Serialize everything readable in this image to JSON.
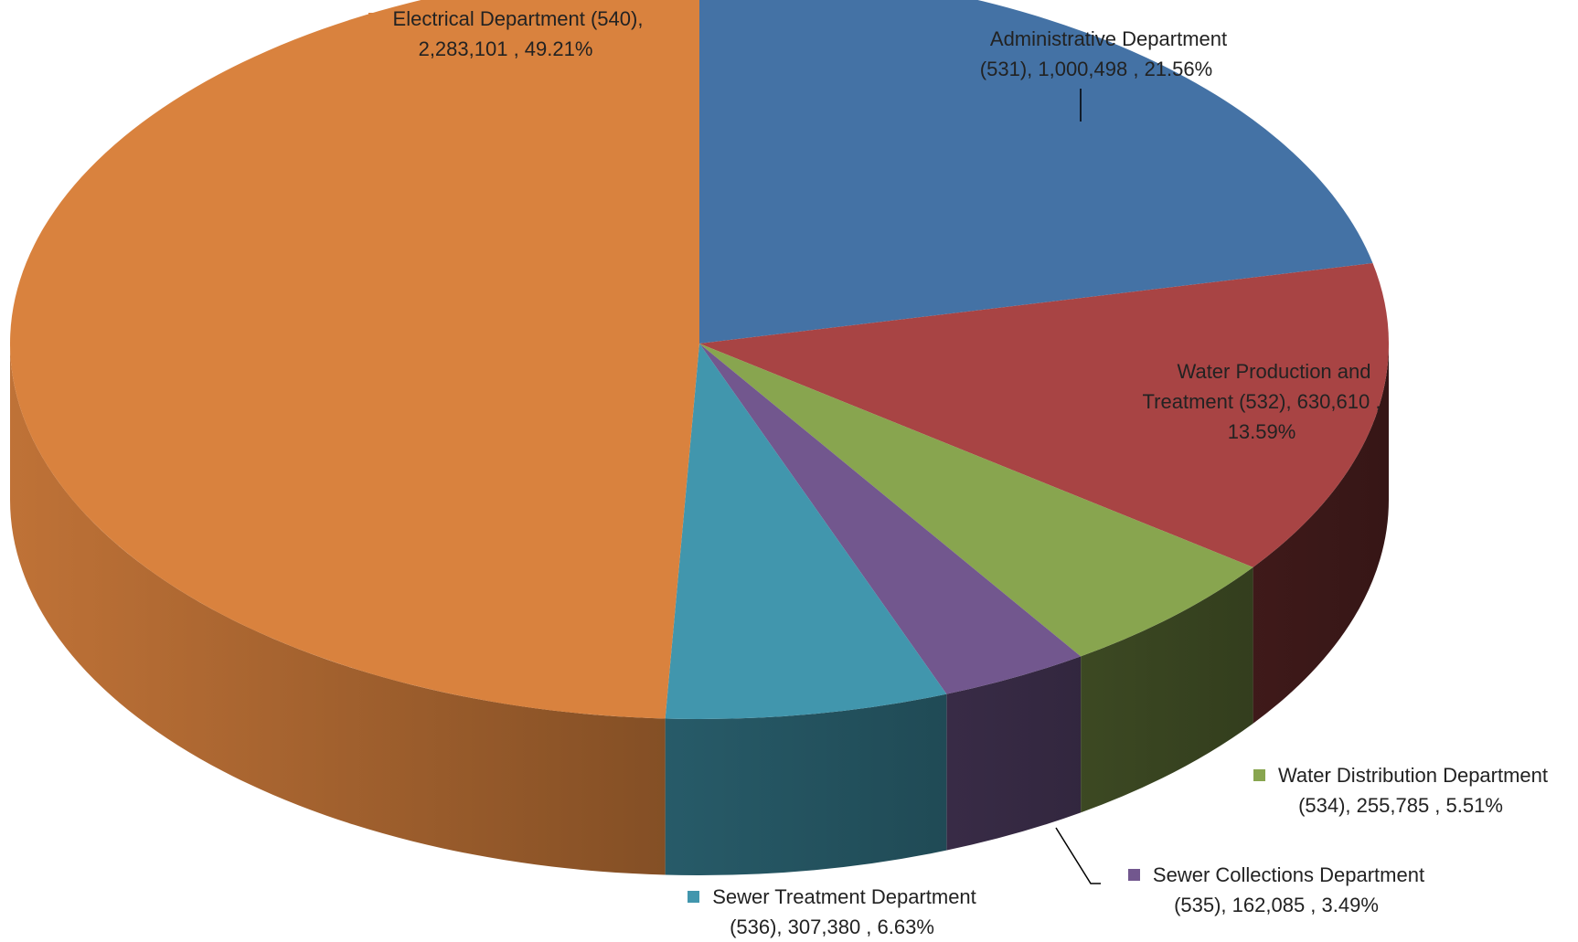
{
  "chart_data": {
    "type": "pie3d",
    "values": [
      1000498,
      630610,
      255785,
      162085,
      307380,
      2283101
    ],
    "value_labels": [
      "Administrative Department (531), 1,000,498 , 21.56%",
      "Water Production and Treatment (532), 630,610 , 13.59%",
      "Water Distribution Department (534), 255,785 , 5.51%",
      "Sewer Collections Department (535), 162,085 , 3.49%",
      "Sewer Treatment Department (536), 307,380 , 6.63%",
      "Electrical Department (540), 2,283,101 , 49.21%"
    ],
    "colors": [
      "#4472a5",
      "#a84444",
      "#88a54f",
      "#72578e",
      "#4196ad",
      "#d9823e"
    ]
  }
}
